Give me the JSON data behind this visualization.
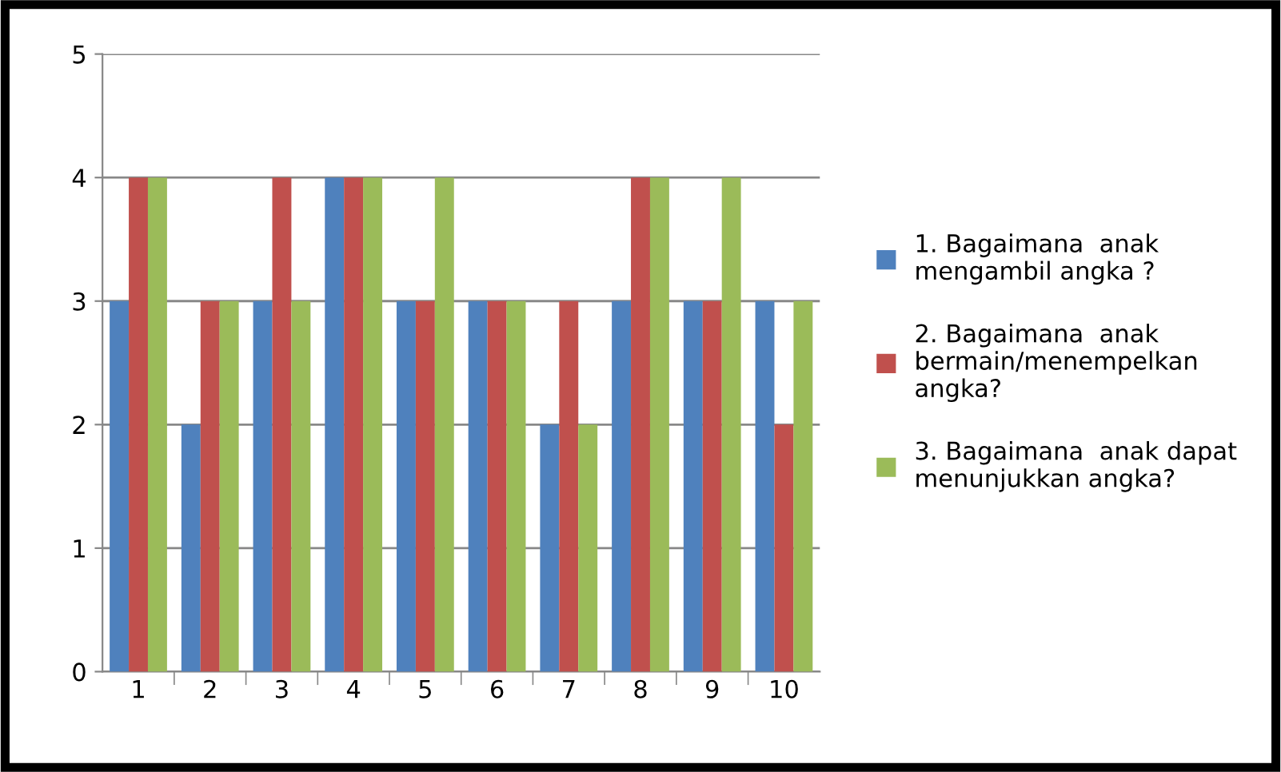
{
  "chart_data": {
    "type": "bar",
    "categories": [
      "1",
      "2",
      "3",
      "4",
      "5",
      "6",
      "7",
      "8",
      "9",
      "10"
    ],
    "series": [
      {
        "name": "1. Bagaimana  anak\nmengambil angka ?",
        "color": "#4f81bd",
        "values": [
          3,
          2,
          3,
          4,
          3,
          3,
          2,
          3,
          3,
          3
        ]
      },
      {
        "name": "2. Bagaimana  anak\nbermain/menempelkan\nangka?",
        "color": "#c0504d",
        "values": [
          4,
          3,
          4,
          4,
          3,
          3,
          3,
          4,
          3,
          2
        ]
      },
      {
        "name": "3. Bagaimana  anak dapat\nmenunjukkan angka?",
        "color": "#9bbb59",
        "values": [
          4,
          3,
          3,
          4,
          4,
          3,
          2,
          4,
          4,
          3
        ]
      }
    ],
    "ylim": [
      0,
      5
    ],
    "yticks": [
      0,
      1,
      2,
      3,
      4,
      5
    ],
    "grid": "y",
    "legend": "right"
  }
}
